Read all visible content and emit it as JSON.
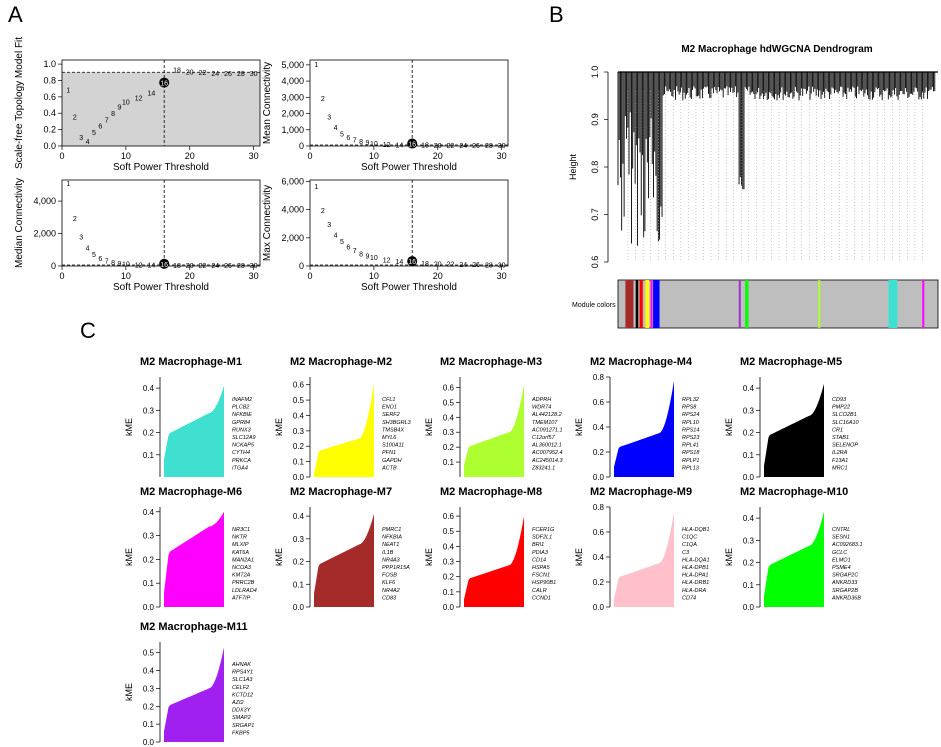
{
  "panel_labels": {
    "a": "A",
    "b": "B",
    "c": "C"
  },
  "soft_power": {
    "xlabel": "Soft Power Threshold",
    "x_ticks": [
      "0",
      "10",
      "20",
      "30"
    ],
    "threshold": 16,
    "powers": [
      1,
      2,
      3,
      4,
      5,
      6,
      7,
      8,
      9,
      10,
      12,
      14,
      16,
      18,
      20,
      22,
      24,
      26,
      28,
      30
    ],
    "scale_free": {
      "ylabel": "Scale-free Topology Model Fit",
      "y_ticks": [
        "0.0",
        "0.2",
        "0.4",
        "0.6",
        "0.8",
        "1.0"
      ],
      "cutoff": 0.9,
      "values": [
        0.68,
        0.35,
        0.1,
        0.05,
        0.16,
        0.24,
        0.31,
        0.39,
        0.47,
        0.53,
        0.58,
        0.64,
        0.75,
        0.92,
        0.9,
        0.89,
        0.88,
        0.88,
        0.88,
        0.88
      ]
    },
    "mean_conn": {
      "ylabel": "Mean Connectivity",
      "y_ticks": [
        "0",
        "1,000",
        "2,000",
        "3,000",
        "4,000",
        "5,000"
      ],
      "ymax": 5300,
      "values": [
        5000,
        2900,
        1750,
        1100,
        720,
        490,
        340,
        240,
        170,
        125,
        70,
        42,
        27,
        18,
        12,
        8,
        6,
        4,
        3,
        2
      ]
    },
    "median_conn": {
      "ylabel": "Median Connectivity",
      "y_ticks": [
        "0",
        "2,000",
        "4,000"
      ],
      "ymax": 5300,
      "values": [
        5050,
        2900,
        1750,
        1080,
        680,
        440,
        290,
        195,
        130,
        90,
        45,
        22,
        12,
        7,
        4,
        3,
        2,
        1,
        1,
        1
      ]
    },
    "max_conn": {
      "ylabel": "Max Connectivity",
      "y_ticks": [
        "0",
        "2,000",
        "4,000",
        "6,000"
      ],
      "ymax": 6100,
      "values": [
        5600,
        3900,
        2900,
        2150,
        1700,
        1300,
        1050,
        830,
        670,
        550,
        380,
        270,
        200,
        150,
        115,
        90,
        70,
        55,
        45,
        35
      ]
    }
  },
  "dendrogram": {
    "title": "M2 Macrophage hdWGCNA Dendrogram",
    "ylabel": "Height",
    "y_ticks": [
      "0.6",
      "0.7",
      "0.8",
      "0.9",
      "1.0"
    ],
    "module_colors_label": "Module colors",
    "module_bar": [
      {
        "color": "#a52a2a",
        "pos": 0.023,
        "w": 0.025
      },
      {
        "color": "#000000",
        "pos": 0.055,
        "w": 0.008
      },
      {
        "color": "#ff0000",
        "pos": 0.067,
        "w": 0.01
      },
      {
        "color": "#ffff00",
        "pos": 0.085,
        "w": 0.012
      },
      {
        "color": "#ff00ff",
        "pos": 0.101,
        "w": 0.006
      },
      {
        "color": "#0000ff",
        "pos": 0.109,
        "w": 0.02
      },
      {
        "color": "#9932cc",
        "pos": 0.375,
        "w": 0.006
      },
      {
        "color": "#00ff00",
        "pos": 0.395,
        "w": 0.01
      },
      {
        "color": "#adff2f",
        "pos": 0.622,
        "w": 0.005
      },
      {
        "color": "#40e0d0",
        "pos": 0.84,
        "w": 0.028
      },
      {
        "color": "#ff00ff",
        "pos": 0.945,
        "w": 0.006
      }
    ]
  },
  "kme": {
    "ylabel": "kME",
    "modules": [
      {
        "title": "M2 Macrophage-M1",
        "color": "#40e0d0",
        "y_ticks": [
          "0.1",
          "0.2",
          "0.3",
          "0.4"
        ],
        "ymin": 0.0,
        "ymax": 0.45,
        "start": 0.08,
        "mid": 0.23,
        "end": 0.41,
        "genes": [
          "INAFM2",
          "PLCB2",
          "NFKBIE",
          "GPR84",
          "RUNX3",
          "SLC12A9",
          "NCKAP5",
          "CYTH4",
          "PRKCA",
          "ITGA4"
        ]
      },
      {
        "title": "M2 Macrophage-M2",
        "color": "#ffff00",
        "y_ticks": [
          "0.0",
          "0.1",
          "0.2",
          "0.3",
          "0.4",
          "0.5",
          "0.6"
        ],
        "ymin": 0.0,
        "ymax": 0.65,
        "start": 0.02,
        "mid": 0.2,
        "end": 0.61,
        "genes": [
          "CFL1",
          "ENO1",
          "SERF2",
          "SH3BGRL3",
          "TMSB4X",
          "MYL6",
          "S100A11",
          "PFN1",
          "GAPDH",
          "ACTB"
        ]
      },
      {
        "title": "M2 Macrophage-M3",
        "color": "#adff2f",
        "y_ticks": [
          "0.1",
          "0.2",
          "0.3",
          "0.4",
          "0.5",
          "0.6"
        ],
        "ymin": 0.0,
        "ymax": 0.67,
        "start": 0.08,
        "mid": 0.24,
        "end": 0.62,
        "genes": [
          "ADPRH",
          "WDR74",
          "AL442128.2",
          "TMEM107",
          "AC091271.1",
          "C12orf57",
          "AL360012.1",
          "AC007952.4",
          "AC245014.3",
          "Z83241.1"
        ]
      },
      {
        "title": "M2 Macrophage-M4",
        "color": "#0000ff",
        "y_ticks": [
          "0.0",
          "0.2",
          "0.4",
          "0.6",
          "0.8"
        ],
        "ymin": 0.0,
        "ymax": 0.8,
        "start": 0.08,
        "mid": 0.28,
        "end": 0.77,
        "genes": [
          "RPL32",
          "RPS8",
          "RPS24",
          "RPL10",
          "RPS14",
          "RPS23",
          "RPL41",
          "RPS18",
          "RPLP1",
          "RPL13"
        ]
      },
      {
        "title": "M2 Macrophage-M5",
        "color": "#000000",
        "y_ticks": [
          "0.0",
          "0.1",
          "0.2",
          "0.3",
          "0.4"
        ],
        "ymin": 0.0,
        "ymax": 0.45,
        "start": 0.05,
        "mid": 0.22,
        "end": 0.42,
        "genes": [
          "CD93",
          "PMP22",
          "SLCO2B1",
          "SLC16A10",
          "CR1",
          "STAB1",
          "SELENOP",
          "IL2RA",
          "F13A1",
          "MRC1"
        ]
      },
      {
        "title": "M2 Macrophage-M6",
        "color": "#ff00ff",
        "y_ticks": [
          "0.0",
          "0.1",
          "0.2",
          "0.3",
          "0.4"
        ],
        "ymin": 0.0,
        "ymax": 0.42,
        "start": 0.06,
        "mid": 0.27,
        "end": 0.4,
        "genes": [
          "NR3C1",
          "NKTR",
          "MLXIP",
          "KAT6A",
          "MAN2A1",
          "NCOA3",
          "KMT2A",
          "PRRC2B",
          "LDLRAD4",
          "ATF7IP"
        ]
      },
      {
        "title": "M2 Macrophage-M7",
        "color": "#a52a2a",
        "y_ticks": [
          "0.0",
          "0.1",
          "0.2",
          "0.3",
          "0.4"
        ],
        "ymin": 0.0,
        "ymax": 0.44,
        "start": 0.06,
        "mid": 0.22,
        "end": 0.41,
        "genes": [
          "PMRC1",
          "NFKBIA",
          "NEAT1",
          "IL1B",
          "NR4A3",
          "PPP1R15A",
          "FOSB",
          "KLF6",
          "NR4A2",
          "CD83"
        ]
      },
      {
        "title": "M2 Macrophage-M8",
        "color": "#ff0000",
        "y_ticks": [
          "0.0",
          "0.1",
          "0.2",
          "0.3",
          "0.4",
          "0.5",
          "0.6"
        ],
        "ymin": 0.0,
        "ymax": 0.66,
        "start": 0.05,
        "mid": 0.22,
        "end": 0.6,
        "genes": [
          "FCER1G",
          "SDF2L1",
          "BRI1",
          "PDIA3",
          "CD14",
          "HSPA5",
          "FSCN1",
          "HSP90B1",
          "CALR",
          "CCND1"
        ]
      },
      {
        "title": "M2 Macrophage-M9",
        "color": "#ffc0cb",
        "y_ticks": [
          "0.0",
          "0.2",
          "0.4",
          "0.6",
          "0.8"
        ],
        "ymin": 0.0,
        "ymax": 0.8,
        "start": 0.06,
        "mid": 0.28,
        "end": 0.76,
        "genes": [
          "HLA-DQB1",
          "C1QC",
          "C1QA",
          "C3",
          "HLA-DQA1",
          "HLA-DPB1",
          "HLA-DPA1",
          "HLA-DRB1",
          "HLA-DRA",
          "CD74"
        ]
      },
      {
        "title": "M2 Macrophage-M10",
        "color": "#00ff00",
        "y_ticks": [
          "0.0",
          "0.1",
          "0.2",
          "0.3",
          "0.4"
        ],
        "ymin": 0.0,
        "ymax": 0.45,
        "start": 0.05,
        "mid": 0.22,
        "end": 0.43,
        "genes": [
          "CNTRL",
          "SESN1",
          "AC092683.1",
          "GCLC",
          "ELMO1",
          "PSME4",
          "SRGAP2C",
          "ANKRD33",
          "SRGAP2B",
          "ANKRD36B"
        ]
      },
      {
        "title": "M2 Macrophage-M11",
        "color": "#a020f0",
        "y_ticks": [
          "0.0",
          "0.1",
          "0.2",
          "0.3",
          "0.4",
          "0.5"
        ],
        "ymin": 0.0,
        "ymax": 0.56,
        "start": 0.06,
        "mid": 0.24,
        "end": 0.53,
        "genes": [
          "AHNAK",
          "RPS4Y1",
          "SLC1A3",
          "CELF2",
          "KCTD12",
          "AZI2",
          "DDX3Y",
          "SMAP2",
          "SRGAP1",
          "FKBP5"
        ]
      }
    ]
  },
  "chart_data": [
    {
      "type": "scatter",
      "title": "Scale-free Topology Model Fit",
      "xlabel": "Soft Power Threshold",
      "ylabel": "Scale-free Topology Model Fit",
      "x": [
        1,
        2,
        3,
        4,
        5,
        6,
        7,
        8,
        9,
        10,
        12,
        14,
        16,
        18,
        20,
        22,
        24,
        26,
        28,
        30
      ],
      "y": [
        0.68,
        0.35,
        0.1,
        0.05,
        0.16,
        0.24,
        0.31,
        0.39,
        0.47,
        0.53,
        0.58,
        0.64,
        0.75,
        0.92,
        0.9,
        0.89,
        0.88,
        0.88,
        0.88,
        0.88
      ],
      "ylim": [
        0,
        1
      ],
      "xlim": [
        0,
        31
      ]
    },
    {
      "type": "scatter",
      "title": "Mean Connectivity",
      "xlabel": "Soft Power Threshold",
      "ylabel": "Mean Connectivity",
      "x": [
        1,
        2,
        3,
        4,
        5,
        6,
        7,
        8,
        9,
        10,
        12,
        14,
        16,
        18,
        20,
        22,
        24,
        26,
        28,
        30
      ],
      "y": [
        5000,
        2900,
        1750,
        1100,
        720,
        490,
        340,
        240,
        170,
        125,
        70,
        42,
        27,
        18,
        12,
        8,
        6,
        4,
        3,
        2
      ],
      "ylim": [
        0,
        5300
      ],
      "xlim": [
        0,
        31
      ]
    },
    {
      "type": "scatter",
      "title": "Median Connectivity",
      "xlabel": "Soft Power Threshold",
      "ylabel": "Median Connectivity",
      "x": [
        1,
        2,
        3,
        4,
        5,
        6,
        7,
        8,
        9,
        10,
        12,
        14,
        16,
        18,
        20,
        22,
        24,
        26,
        28,
        30
      ],
      "y": [
        5050,
        2900,
        1750,
        1080,
        680,
        440,
        290,
        195,
        130,
        90,
        45,
        22,
        12,
        7,
        4,
        3,
        2,
        1,
        1,
        1
      ],
      "ylim": [
        0,
        5300
      ],
      "xlim": [
        0,
        31
      ]
    },
    {
      "type": "scatter",
      "title": "Max Connectivity",
      "xlabel": "Soft Power Threshold",
      "ylabel": "Max Connectivity",
      "x": [
        1,
        2,
        3,
        4,
        5,
        6,
        7,
        8,
        9,
        10,
        12,
        14,
        16,
        18,
        20,
        22,
        24,
        26,
        28,
        30
      ],
      "y": [
        5600,
        3900,
        2900,
        2150,
        1700,
        1300,
        1050,
        830,
        670,
        550,
        380,
        270,
        200,
        150,
        115,
        90,
        70,
        55,
        45,
        35
      ],
      "ylim": [
        0,
        6100
      ],
      "xlim": [
        0,
        31
      ]
    }
  ]
}
